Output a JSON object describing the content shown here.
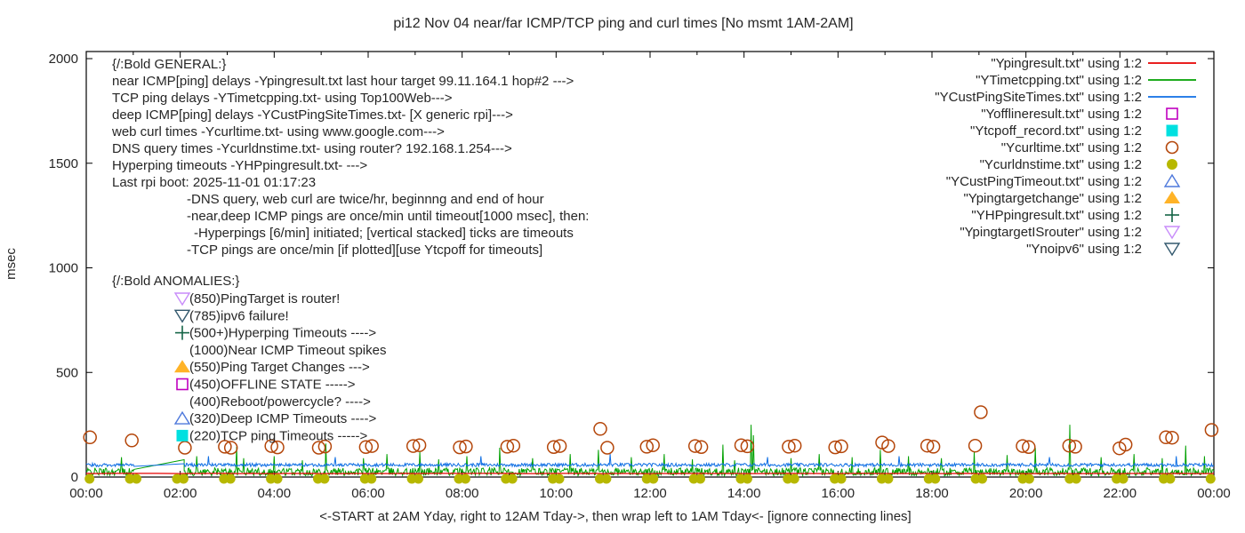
{
  "colors": {
    "red": "#e60000",
    "green": "#00a000",
    "blue": "#0e6ee4",
    "magenta": "#bf00bf",
    "cyan": "#00e0e0",
    "chocolate": "#b4460a",
    "olive": "#b7b800",
    "skyblue": "#4e79dc",
    "orange": "#ffb327",
    "darkgreen": "#146446",
    "violet": "#c88cfa",
    "steel": "#33596e",
    "text": "#262626",
    "axis": "#000000"
  },
  "chart_data": {
    "type": "line",
    "title": "pi12 Nov 04  near/far ICMP/TCP ping and curl times [No msmt 1AM-2AM]",
    "ylabel": "msec",
    "xlabel": "<-START at 2AM Yday, right to 12AM Tday->, then wrap left to 1AM Tday<- [ignore connecting lines]",
    "ylim": [
      0,
      2000
    ],
    "yticks": [
      0,
      500,
      1000,
      1500,
      2000
    ],
    "x_hours_range": [
      0,
      24
    ],
    "xtick_major_labels": [
      "00:00",
      "02:00",
      "04:00",
      "06:00",
      "08:00",
      "10:00",
      "12:00",
      "14:00",
      "16:00",
      "18:00",
      "20:00",
      "22:00",
      "00:00"
    ],
    "no_measurement_gap_hours": [
      1.03,
      2.08
    ],
    "gap_reconnect_peak": [
      2.083,
      83
    ],
    "grid": false,
    "legend_position": "top-right",
    "series": [
      {
        "name": "Ypingresult.txt",
        "legend": "\"Ypingresult.txt\" using 1:2",
        "style": "line",
        "color_key": "red",
        "summary": "near ICMP ping delay, flat ~17 msec across full 24h",
        "base_msec": 17
      },
      {
        "name": "YTimetcpping.txt",
        "legend": "\"YTimetcpping.txt\" using 1:2",
        "style": "line",
        "color_key": "green",
        "summary": "TCP ping delay, noisy 5-45 msec with timeout spikes",
        "noise_range_msec": [
          6,
          44
        ],
        "spikes": [
          [
            0.75,
            95
          ],
          [
            2.35,
            100
          ],
          [
            3.2,
            145
          ],
          [
            3.35,
            90
          ],
          [
            4.0,
            100
          ],
          [
            4.6,
            80
          ],
          [
            5.1,
            160
          ],
          [
            5.9,
            90
          ],
          [
            6.4,
            110
          ],
          [
            7.1,
            120
          ],
          [
            7.5,
            85
          ],
          [
            8.1,
            100
          ],
          [
            8.8,
            140
          ],
          [
            9.5,
            90
          ],
          [
            10.3,
            110
          ],
          [
            10.9,
            130
          ],
          [
            11.6,
            95
          ],
          [
            12.3,
            110
          ],
          [
            12.9,
            85
          ],
          [
            13.55,
            155
          ],
          [
            13.8,
            80
          ],
          [
            14.15,
            250
          ],
          [
            14.2,
            200
          ],
          [
            15.0,
            90
          ],
          [
            15.6,
            110
          ],
          [
            16.3,
            95
          ],
          [
            16.9,
            130
          ],
          [
            17.5,
            100
          ],
          [
            18.2,
            90
          ],
          [
            18.9,
            120
          ],
          [
            19.6,
            105
          ],
          [
            20.2,
            140
          ],
          [
            20.93,
            250
          ],
          [
            21.6,
            95
          ],
          [
            22.3,
            110
          ],
          [
            22.9,
            90
          ],
          [
            23.4,
            150
          ],
          [
            23.8,
            100
          ]
        ]
      },
      {
        "name": "YCustPingSiteTimes.txt",
        "legend": "\"YCustPingSiteTimes.txt\" using 1:2",
        "style": "line",
        "color_key": "blue",
        "summary": "deep ICMP ping delay, band ~50-66 msec",
        "noise_range_msec": [
          50,
          66
        ],
        "spikes": [
          [
            2.6,
            100
          ],
          [
            5.3,
            95
          ],
          [
            8.4,
            100
          ],
          [
            11.15,
            110
          ],
          [
            14.5,
            95
          ],
          [
            17.3,
            100
          ],
          [
            20.5,
            95
          ],
          [
            23.2,
            100
          ]
        ]
      },
      {
        "name": "Yofflineresult.txt",
        "legend": "\"Yofflineresult.txt\" using 1:2",
        "style": "points-square-open",
        "color_key": "magenta",
        "points": []
      },
      {
        "name": "Ytcpoff_record.txt",
        "legend": "\"Ytcpoff_record.txt\" using 1:2",
        "style": "points-square-fill",
        "color_key": "cyan",
        "points": []
      },
      {
        "name": "Ycurltime.txt",
        "legend": "\"Ycurltime.txt\" using 1:2",
        "style": "points-circle-open",
        "color_key": "chocolate",
        "summary": "web curl times twice per hour, mostly ~140-155 msec",
        "points": [
          [
            0.08,
            190
          ],
          [
            0.97,
            175
          ],
          [
            2.1,
            140
          ],
          [
            2.95,
            145
          ],
          [
            3.08,
            140
          ],
          [
            3.94,
            148
          ],
          [
            4.07,
            142
          ],
          [
            4.95,
            140
          ],
          [
            5.08,
            146
          ],
          [
            5.95,
            143
          ],
          [
            6.08,
            148
          ],
          [
            6.96,
            148
          ],
          [
            7.09,
            152
          ],
          [
            7.95,
            142
          ],
          [
            8.08,
            146
          ],
          [
            8.96,
            145
          ],
          [
            9.09,
            150
          ],
          [
            9.95,
            143
          ],
          [
            10.08,
            148
          ],
          [
            10.94,
            230
          ],
          [
            11.09,
            140
          ],
          [
            11.93,
            145
          ],
          [
            12.06,
            152
          ],
          [
            12.96,
            148
          ],
          [
            13.09,
            143
          ],
          [
            13.94,
            152
          ],
          [
            14.07,
            147
          ],
          [
            14.95,
            145
          ],
          [
            15.08,
            150
          ],
          [
            15.94,
            142
          ],
          [
            16.07,
            147
          ],
          [
            16.94,
            165
          ],
          [
            17.07,
            148
          ],
          [
            17.9,
            150
          ],
          [
            18.03,
            145
          ],
          [
            18.92,
            150
          ],
          [
            19.04,
            310
          ],
          [
            19.93,
            148
          ],
          [
            20.06,
            143
          ],
          [
            20.92,
            150
          ],
          [
            21.05,
            145
          ],
          [
            21.99,
            137
          ],
          [
            22.12,
            155
          ],
          [
            22.98,
            190
          ],
          [
            23.11,
            188
          ],
          [
            23.95,
            225
          ]
        ]
      },
      {
        "name": "Ycurldnstime.txt",
        "legend": "\"Ycurldnstime.txt\" using 1:2",
        "style": "points-circle-fill",
        "color_key": "olive",
        "summary": "DNS query times twice per hour, ~0 msec (dots on baseline)",
        "hourly_pairs": true,
        "value_msec": 0
      },
      {
        "name": "YCustPingTimeout.txt",
        "legend": "\"YCustPingTimeout.txt\" using 1:2",
        "style": "points-tri-up-open",
        "color_key": "skyblue",
        "points": []
      },
      {
        "name": "Ypingtargetchange",
        "legend": "\"Ypingtargetchange\" using 1:2",
        "style": "points-tri-up-fill",
        "color_key": "orange",
        "points": []
      },
      {
        "name": "YHPpingresult.txt",
        "legend": "\"YHPpingresult.txt\" using 1:2",
        "style": "points-plus",
        "color_key": "darkgreen",
        "points": []
      },
      {
        "name": "YpingtargetISrouter",
        "legend": "\"YpingtargetISrouter\" using 1:2",
        "style": "points-tri-down-open",
        "color_key": "violet",
        "points": []
      },
      {
        "name": "Ynoipv6",
        "legend": "\"Ynoipv6\" using 1:2",
        "style": "points-tri-down-open",
        "color_key": "steel",
        "points": []
      }
    ]
  },
  "annotations": {
    "general": {
      "heading": "{/:Bold GENERAL:}",
      "lines": [
        {
          "text": "near ICMP[ping] delays -Ypingresult.txt last hour target 99.11.164.1 hop#2 --->",
          "indent": 0
        },
        {
          "text": "TCP ping delays -YTimetcpping.txt- using Top100Web--->",
          "indent": 0
        },
        {
          "text": "deep ICMP[ping] delays -YCustPingSiteTimes.txt- [X generic rpi]--->",
          "indent": 0
        },
        {
          "text": "web curl times -Ycurltime.txt- using www.google.com--->",
          "indent": 0
        },
        {
          "text": "DNS query times -Ycurldnstime.txt- using router? 192.168.1.254--->",
          "indent": 0
        },
        {
          "text": "Hyperping timeouts -YHPpingresult.txt- --->",
          "indent": 0
        },
        {
          "text": "Last rpi boot: 2025-11-01 01:17:23",
          "indent": 0
        },
        {
          "text": "-DNS query, web curl are twice/hr, beginnng and end of hour",
          "indent": 84
        },
        {
          "text": "-near,deep ICMP pings are once/min until timeout[1000 msec], then:",
          "indent": 84
        },
        {
          "text": "-Hyperpings [6/min] initiated; [vertical stacked] ticks are timeouts",
          "indent": 92
        },
        {
          "text": "-TCP pings are once/min [if plotted][use Ytcpoff for timeouts]",
          "indent": 84
        }
      ]
    },
    "anomalies": {
      "heading": "{/:Bold ANOMALIES:}",
      "rows": [
        {
          "marker": "tri-down-open",
          "color_key": "violet",
          "text": "(850)PingTarget is router!"
        },
        {
          "marker": "tri-down-open",
          "color_key": "steel",
          "text": "(785)ipv6 failure!"
        },
        {
          "marker": "plus",
          "color_key": "darkgreen",
          "text": "(500+)Hyperping Timeouts ---->"
        },
        {
          "marker": null,
          "color_key": null,
          "text": "(1000)Near ICMP Timeout spikes"
        },
        {
          "marker": "tri-up-fill",
          "color_key": "orange",
          "text": "(550)Ping Target Changes --->"
        },
        {
          "marker": "square-open",
          "color_key": "magenta",
          "text": "(450)OFFLINE STATE ----->"
        },
        {
          "marker": null,
          "color_key": null,
          "text": "(400)Reboot/powercycle? ---->"
        },
        {
          "marker": "tri-up-open",
          "color_key": "skyblue",
          "text": "(320)Deep ICMP Timeouts ---->"
        },
        {
          "marker": "square-fill",
          "color_key": "cyan",
          "text": "(220)TCP ping Timeouts ----->"
        }
      ]
    }
  }
}
